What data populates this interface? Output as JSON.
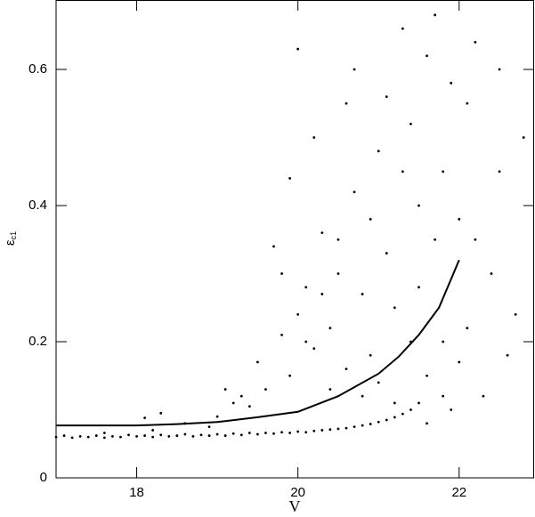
{
  "chart_data": {
    "type": "scatter",
    "xlabel": "V",
    "ylabel": "ε",
    "ylabel_sub": "c1",
    "xlim": [
      17,
      22.93
    ],
    "ylim": [
      0,
      0.702
    ],
    "xticks": [
      18,
      20,
      22
    ],
    "yticks": [
      0,
      0.2,
      0.4,
      0.6
    ],
    "color": "#000000",
    "x": [
      17.0,
      17.1,
      17.2,
      17.3,
      17.4,
      17.5,
      17.6,
      17.7,
      17.8,
      17.9,
      18.0,
      18.1,
      18.2,
      18.3,
      18.4,
      18.5,
      18.6,
      18.7,
      18.8,
      18.9,
      19.0,
      19.1,
      19.2,
      19.3,
      19.4,
      19.5,
      19.6,
      19.7,
      19.8,
      19.9,
      20.0,
      20.1,
      20.2,
      20.3,
      20.4,
      20.5,
      20.6,
      20.7,
      20.8,
      20.9,
      21.0,
      21.1,
      21.2,
      21.3,
      21.4,
      21.5,
      17.6,
      18.1,
      18.3,
      18.2,
      18.6,
      18.9,
      19.0,
      19.1,
      19.2,
      19.3,
      19.4,
      19.5,
      19.6,
      19.7,
      19.8,
      19.9,
      20.0,
      20.0,
      20.1,
      20.2,
      20.3,
      20.4,
      20.5,
      20.6,
      20.7,
      20.8,
      20.9,
      21.0,
      21.1,
      21.2,
      21.3,
      21.4,
      21.5,
      21.6,
      21.7,
      21.8,
      21.9,
      22.0,
      22.1,
      22.2,
      22.3,
      22.4,
      22.5,
      22.6,
      22.7,
      22.8,
      19.9,
      20.2,
      20.4,
      20.6,
      20.8,
      21.0,
      21.2,
      21.4,
      21.6,
      21.8,
      22.0,
      21.5,
      21.7,
      20.9,
      20.3,
      19.8,
      20.1,
      20.5,
      21.1,
      21.3,
      21.9,
      22.2,
      22.5,
      20.7,
      21.6,
      21.8,
      22.1
    ],
    "y": [
      0.06,
      0.062,
      0.059,
      0.061,
      0.06,
      0.062,
      0.059,
      0.061,
      0.06,
      0.063,
      0.061,
      0.062,
      0.06,
      0.063,
      0.061,
      0.062,
      0.064,
      0.061,
      0.063,
      0.062,
      0.064,
      0.062,
      0.065,
      0.063,
      0.066,
      0.064,
      0.066,
      0.065,
      0.067,
      0.066,
      0.068,
      0.067,
      0.069,
      0.07,
      0.071,
      0.072,
      0.073,
      0.075,
      0.077,
      0.079,
      0.082,
      0.085,
      0.089,
      0.094,
      0.1,
      0.11,
      0.066,
      0.088,
      0.095,
      0.07,
      0.08,
      0.075,
      0.09,
      0.13,
      0.11,
      0.12,
      0.105,
      0.17,
      0.13,
      0.34,
      0.21,
      0.15,
      0.63,
      0.24,
      0.28,
      0.19,
      0.36,
      0.22,
      0.3,
      0.55,
      0.42,
      0.27,
      0.18,
      0.48,
      0.33,
      0.25,
      0.66,
      0.52,
      0.4,
      0.62,
      0.68,
      0.45,
      0.58,
      0.38,
      0.22,
      0.64,
      0.12,
      0.3,
      0.45,
      0.18,
      0.24,
      0.5,
      0.44,
      0.5,
      0.13,
      0.16,
      0.12,
      0.14,
      0.11,
      0.2,
      0.15,
      0.2,
      0.17,
      0.28,
      0.35,
      0.38,
      0.27,
      0.3,
      0.2,
      0.35,
      0.56,
      0.45,
      0.1,
      0.35,
      0.6,
      0.6,
      0.08,
      0.12,
      0.55
    ],
    "curve": {
      "x": [
        17,
        18,
        18.5,
        19,
        19.5,
        20,
        20.5,
        21,
        21.25,
        21.5,
        21.75,
        22
      ],
      "y": [
        0.077,
        0.077,
        0.079,
        0.082,
        0.089,
        0.097,
        0.12,
        0.153,
        0.178,
        0.21,
        0.25,
        0.32
      ]
    }
  }
}
